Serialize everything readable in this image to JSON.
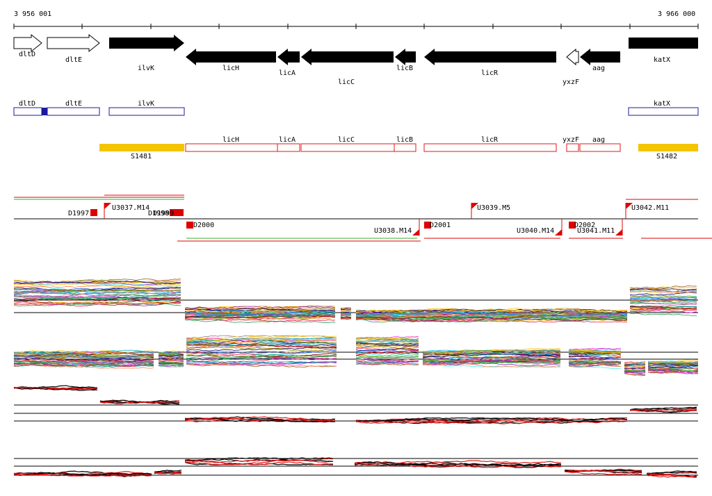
{
  "coordinates": {
    "start_label": "3 956 001",
    "end_label": "3 966 000"
  },
  "gene_arrows": [
    {
      "name": "dltD",
      "style": "open",
      "dir": "right",
      "label": "dltD"
    },
    {
      "name": "dltE",
      "style": "open",
      "dir": "right",
      "label": "dltE"
    },
    {
      "name": "ilvK",
      "style": "solid",
      "dir": "right",
      "label": "ilvK"
    },
    {
      "name": "licH",
      "style": "solid",
      "dir": "left",
      "label": "licH"
    },
    {
      "name": "licA",
      "style": "solid",
      "dir": "left",
      "label": "licA"
    },
    {
      "name": "licC",
      "style": "solid",
      "dir": "left",
      "label": "licC"
    },
    {
      "name": "licB",
      "style": "solid",
      "dir": "left",
      "label": "licB"
    },
    {
      "name": "licR",
      "style": "solid",
      "dir": "left",
      "label": "licR"
    },
    {
      "name": "yxzF",
      "style": "open",
      "dir": "left",
      "label": "yxzF"
    },
    {
      "name": "aag",
      "style": "solid",
      "dir": "left",
      "label": "aag"
    },
    {
      "name": "katX",
      "style": "solid",
      "dir": "left",
      "label": "katX"
    }
  ],
  "blue_track": [
    {
      "name": "dltD",
      "label": "dltD"
    },
    {
      "name": "dltE",
      "label": "dltE"
    },
    {
      "name": "ilvK",
      "label": "ilvK"
    },
    {
      "name": "katX",
      "label": "katX"
    }
  ],
  "red_track": [
    {
      "name": "licH",
      "label": "licH"
    },
    {
      "name": "licA",
      "label": "licA"
    },
    {
      "name": "licC",
      "label": "licC"
    },
    {
      "name": "licB",
      "label": "licB"
    },
    {
      "name": "licR",
      "label": "licR"
    },
    {
      "name": "yxzF",
      "label": "yxzF"
    },
    {
      "name": "aag",
      "label": "aag"
    }
  ],
  "yellow_blocks": [
    {
      "name": "S1481",
      "label": "S1481"
    },
    {
      "name": "S1482",
      "label": "S1482"
    }
  ],
  "features": [
    {
      "name": "D1997",
      "label": "D1997"
    },
    {
      "name": "U3037",
      "label": "U3037.M14"
    },
    {
      "name": "D1998",
      "label": "D1998"
    },
    {
      "name": "D1999",
      "label": "D1999"
    },
    {
      "name": "D2000",
      "label": "D2000"
    },
    {
      "name": "U3038",
      "label": "U3038.M14"
    },
    {
      "name": "D2001",
      "label": "D2001"
    },
    {
      "name": "U3039",
      "label": "U3039.M5"
    },
    {
      "name": "U3040",
      "label": "U3040.M14"
    },
    {
      "name": "D2002",
      "label": "D2002"
    },
    {
      "name": "U3041",
      "label": "U3041.M11"
    },
    {
      "name": "U3042",
      "label": "U3042.M11"
    }
  ],
  "colors": {
    "gene_fill": "#000000",
    "blue_track": "#1a1aa0",
    "red_track": "#e01818",
    "yellow_block": "#f5c400",
    "feature_red": "#e00000",
    "green_line": "#30b030",
    "profile_palette": [
      "#e6194b",
      "#3cb44b",
      "#ffc000",
      "#4363d8",
      "#f58231",
      "#911eb4",
      "#46f0f0",
      "#f032e6",
      "#9ac020",
      "#008080",
      "#9a6324",
      "#800000",
      "#2a9a5a",
      "#808000",
      "#000075",
      "#808080",
      "#00c0ff",
      "#ff7f50"
    ]
  }
}
